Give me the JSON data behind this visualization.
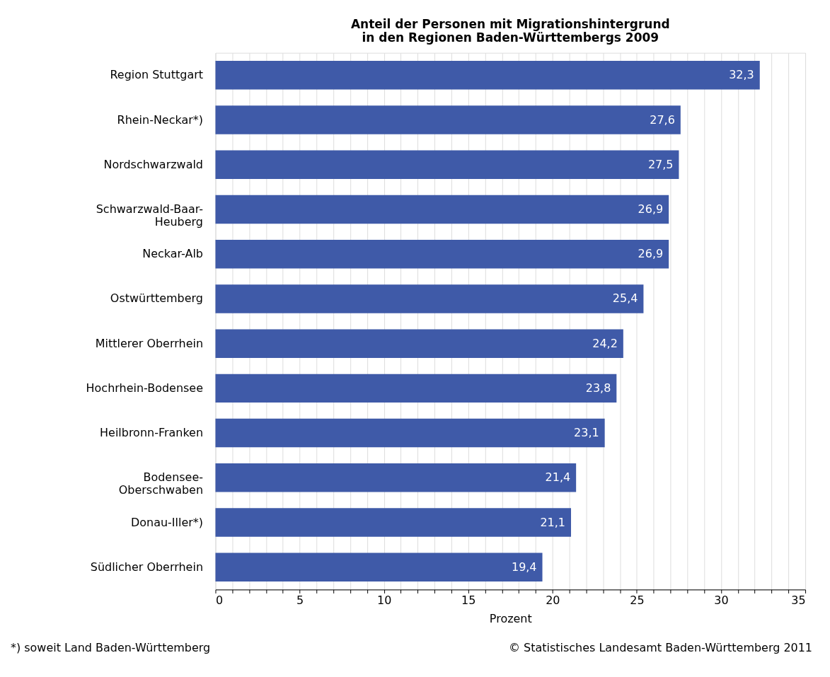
{
  "chart_data": {
    "type": "bar",
    "orientation": "horizontal",
    "title": "Anteil der Personen mit Migrationshintergrund\nin den Regionen Baden-Württembergs 2009",
    "xlabel": "Prozent",
    "categories": [
      "Region Stuttgart",
      "Rhein-Neckar*)",
      "Nordschwarzwald",
      "Schwarzwald-Baar-Heuberg",
      "Neckar-Alb",
      "Ostwürttemberg",
      "Mittlerer Oberrhein",
      "Hochrhein-Bodensee",
      "Heilbronn-Franken",
      "Bodensee-Oberschwaben",
      "Donau-Iller*)",
      "Südlicher Oberrhein"
    ],
    "values": [
      32.3,
      27.6,
      27.5,
      26.9,
      26.9,
      25.4,
      24.2,
      23.8,
      23.1,
      21.4,
      21.1,
      19.4
    ],
    "value_labels": [
      "32,3",
      "27,6",
      "27,5",
      "26,9",
      "26,9",
      "25,4",
      "24,2",
      "23,8",
      "23,1",
      "21,4",
      "21,1",
      "19,4"
    ],
    "color": "#3f5aa8",
    "xlim": [
      0,
      35
    ],
    "xticks": [
      0,
      {
        "value": 1,
        "label": null
      },
      {
        "value": 2,
        "label": null
      },
      {
        "value": 3,
        "label": null
      },
      {
        "value": 4,
        "label": null
      },
      5,
      {
        "value": 6,
        "label": null
      },
      {
        "value": 7,
        "label": null
      },
      {
        "value": 8,
        "label": null
      },
      {
        "value": 9,
        "label": null
      },
      10,
      {
        "value": 11,
        "label": null
      },
      {
        "value": 12,
        "label": null
      },
      {
        "value": 13,
        "label": null
      },
      {
        "value": 14,
        "label": null
      },
      15,
      {
        "value": 16,
        "label": null
      },
      {
        "value": 17,
        "label": null
      },
      {
        "value": 18,
        "label": null
      },
      {
        "value": 19,
        "label": null
      },
      20,
      {
        "value": 21,
        "label": null
      },
      {
        "value": 22,
        "label": null
      },
      {
        "value": 23,
        "label": null
      },
      {
        "value": 24,
        "label": null
      },
      25,
      {
        "value": 26,
        "label": null
      },
      {
        "value": 27,
        "label": null
      },
      {
        "value": 28,
        "label": null
      },
      {
        "value": 29,
        "label": null
      },
      30,
      {
        "value": 31,
        "label": null
      },
      {
        "value": 32,
        "label": null
      },
      {
        "value": 33,
        "label": null
      },
      {
        "value": 34,
        "label": null
      },
      35
    ],
    "grid": "x",
    "annotations": [
      "*) soweit Land Baden-Württemberg",
      "© Statistisches Landesamt Baden-Württemberg 2011"
    ]
  }
}
